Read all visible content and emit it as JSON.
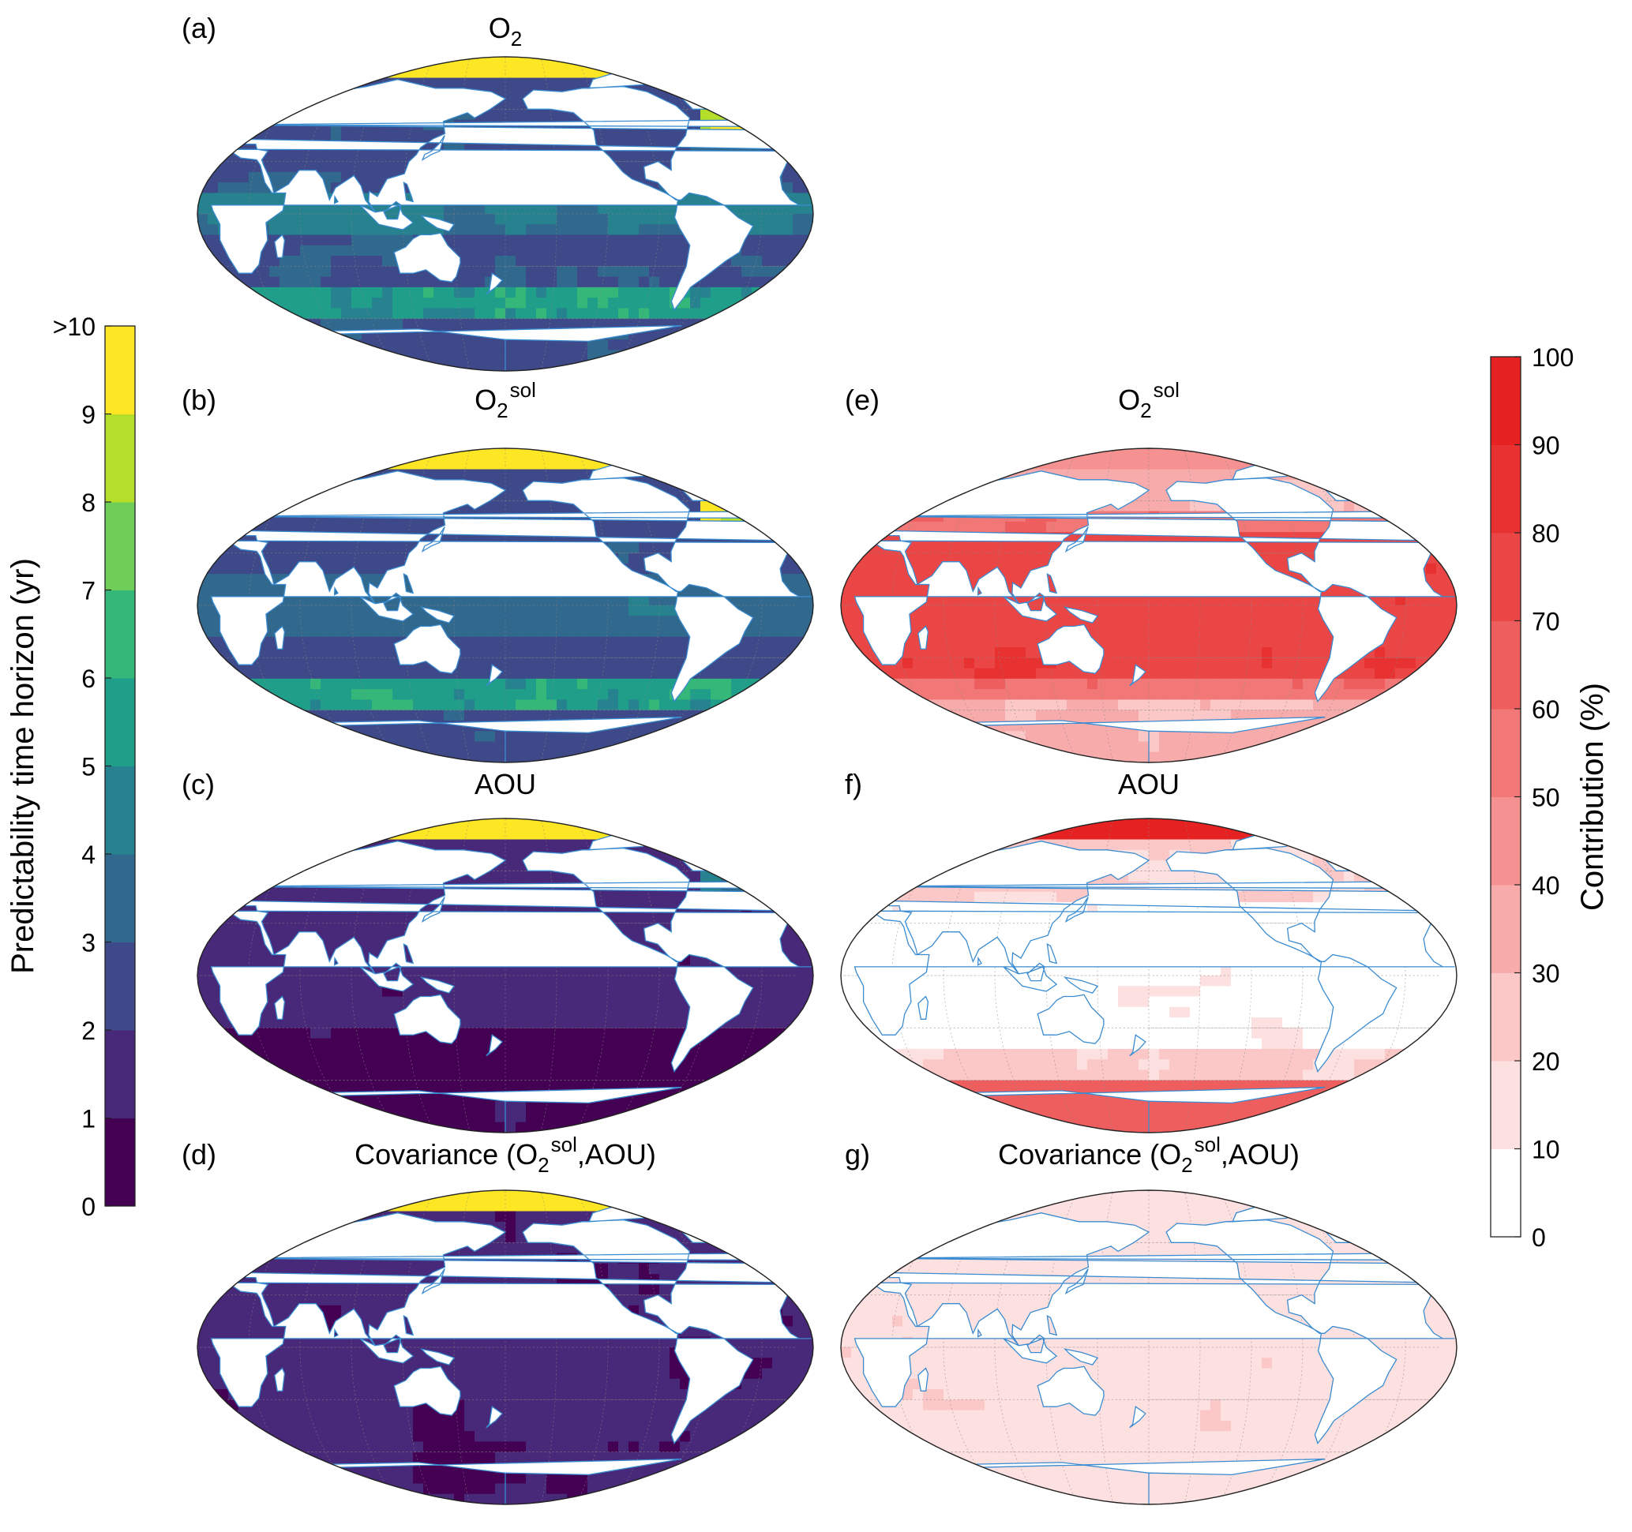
{
  "figure": {
    "panels": [
      {
        "id": "a",
        "letter": "(a)",
        "var": "O",
        "sub": "2",
        "sup": "",
        "suffix": "",
        "type": "pred",
        "mode": 0
      },
      {
        "id": "b",
        "letter": "(b)",
        "var": "O",
        "sub": "2",
        "sup": "sol",
        "suffix": "",
        "type": "pred",
        "mode": 1
      },
      {
        "id": "c",
        "letter": "(c)",
        "var": "AOU",
        "sub": "",
        "sup": "",
        "suffix": "",
        "type": "pred",
        "mode": 2
      },
      {
        "id": "d",
        "letter": "(d)",
        "var": "Covariance (O",
        "sub": "2",
        "sup": "sol",
        "suffix": ",AOU)",
        "type": "pred",
        "mode": 3
      },
      {
        "id": "e",
        "letter": "(e)",
        "var": "O",
        "sub": "2",
        "sup": "sol",
        "suffix": "",
        "type": "contrib",
        "mode": 1
      },
      {
        "id": "f",
        "letter": "f)",
        "var": "AOU",
        "sub": "",
        "sup": "",
        "suffix": "",
        "type": "contrib",
        "mode": 2
      },
      {
        "id": "g",
        "letter": "g)",
        "var": "Covariance (O",
        "sub": "2",
        "sup": "sol",
        "suffix": ",AOU)",
        "type": "contrib",
        "mode": 3
      }
    ],
    "colorbar_pred": {
      "label": "Predictability time horizon (yr)",
      "ticks": [
        "0",
        "1",
        "2",
        "3",
        "4",
        "5",
        "6",
        "7",
        "8",
        "9",
        ">10"
      ],
      "colors": [
        "#440154",
        "#482878",
        "#3e4989",
        "#31688e",
        "#26828e",
        "#1f9e89",
        "#35b779",
        "#6ece58",
        "#b5de2b",
        "#fde725"
      ]
    },
    "colorbar_contrib": {
      "label": "Contribution (%)",
      "ticks": [
        "0",
        "10",
        "20",
        "30",
        "40",
        "50",
        "60",
        "70",
        "80",
        "90",
        "100"
      ],
      "colors": [
        "#ffffff",
        "#fde0e0",
        "#fbc7c7",
        "#f8abab",
        "#f59191",
        "#f27777",
        "#ee5e5e",
        "#eb4646",
        "#e83232",
        "#e52121"
      ]
    }
  }
}
